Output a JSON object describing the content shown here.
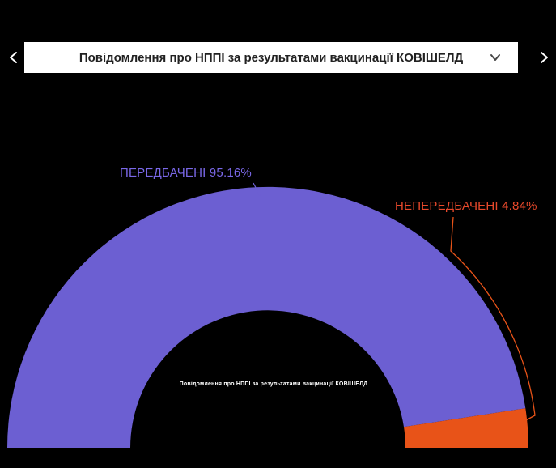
{
  "header": {
    "title": "Повідомлення про НППІ за результатами вакцинації КОВІШЕЛД",
    "prev_icon": "chevron-left",
    "next_icon": "chevron-right",
    "dropdown_icon": "chevron-down"
  },
  "callouts": {
    "predicted": {
      "text": "ПЕРЕДБАЧЕНІ 95.16%",
      "color": "#7A68E8"
    },
    "unforeseen": {
      "text": "НЕПЕРЕДБАЧЕНІ 4.84%",
      "color": "#E8492B"
    }
  },
  "chart_data": {
    "type": "pie",
    "variant": "half-donut",
    "title": "Повідомлення про НППІ за результатами вакцинації КОВІШЕЛД",
    "center_label": "Повідомлення про НППІ за результатами вакцинації КОВІШЕЛД",
    "slices": [
      {
        "label": "ПЕРЕДБАЧЕНІ",
        "value": 95.16,
        "color": "#6C5FD2"
      },
      {
        "label": "НЕПЕРЕДБАЧЕНІ",
        "value": 4.84,
        "color": "#E85318"
      }
    ],
    "background": "#000000",
    "legend_position": "labeled-callouts"
  }
}
